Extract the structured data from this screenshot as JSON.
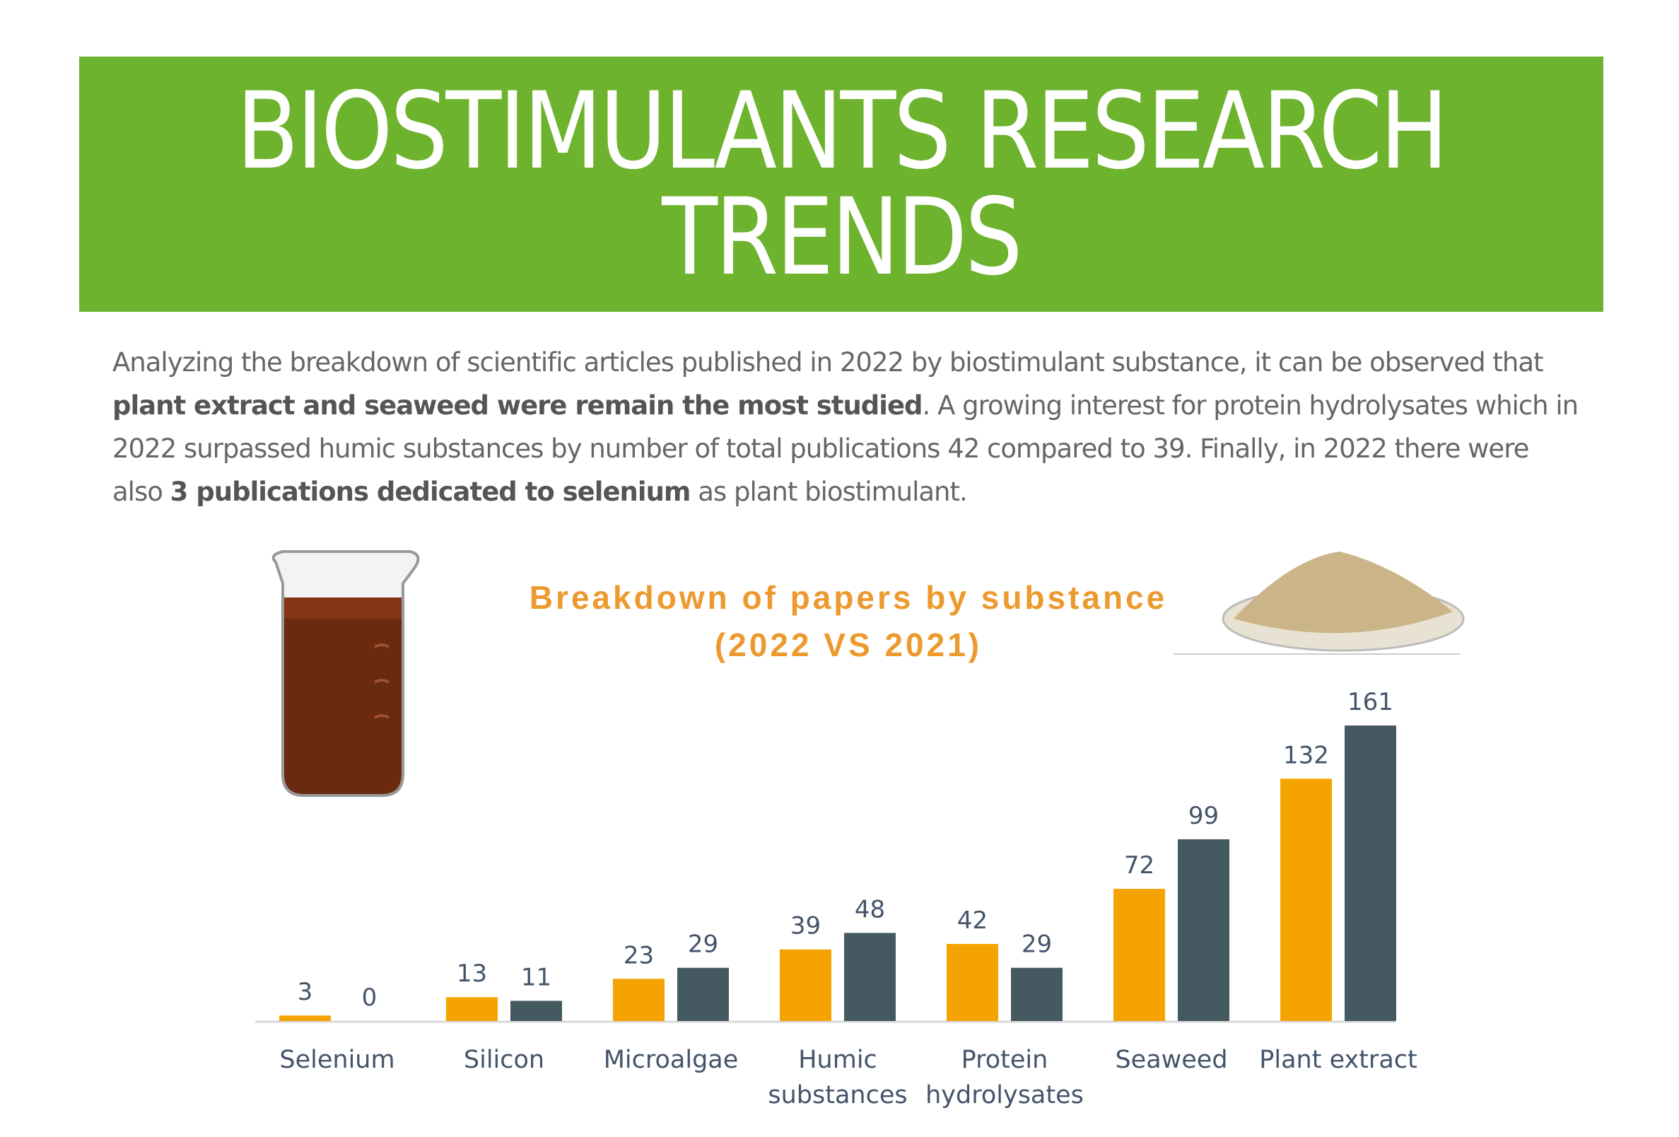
{
  "header": {
    "title_line1": "BIOSTIMULANTS RESEARCH",
    "title_line2": "TRENDS"
  },
  "paragraph": {
    "p1": "Analyzing the breakdown of scientific articles published in 2022 by biostimulant substance, it can be observed that ",
    "b1": "plant extract and seaweed were remain the most studied",
    "p2": ". A growing interest for protein hydrolysates which in 2022 surpassed humic substances by number of total publications 42 compared to 39. Finally, in 2022 there were also ",
    "b2": "3 publications dedicated to selenium",
    "p3": " as plant biostimulant."
  },
  "colors": {
    "banner": "#6db32e",
    "series_2022": "#f5a300",
    "series_2021": "#455a60",
    "title": "#ec9a2e"
  },
  "chart_data": {
    "type": "bar",
    "title": "Breakdown of papers by substance",
    "subtitle": "(2022 VS 2021)",
    "categories": [
      "Selenium",
      "Silicon",
      "Microalgae",
      "Humic substances",
      "Protein hydrolysates",
      "Seaweed",
      "Plant extract"
    ],
    "series": [
      {
        "values": [
          3,
          13,
          23,
          39,
          42,
          72,
          132
        ],
        "color": "#f5a300"
      },
      {
        "values": [
          0,
          11,
          29,
          48,
          29,
          99,
          161
        ],
        "color": "#455a60"
      }
    ],
    "data_labels": true,
    "grid": false,
    "ylim": [
      0,
      161
    ]
  }
}
